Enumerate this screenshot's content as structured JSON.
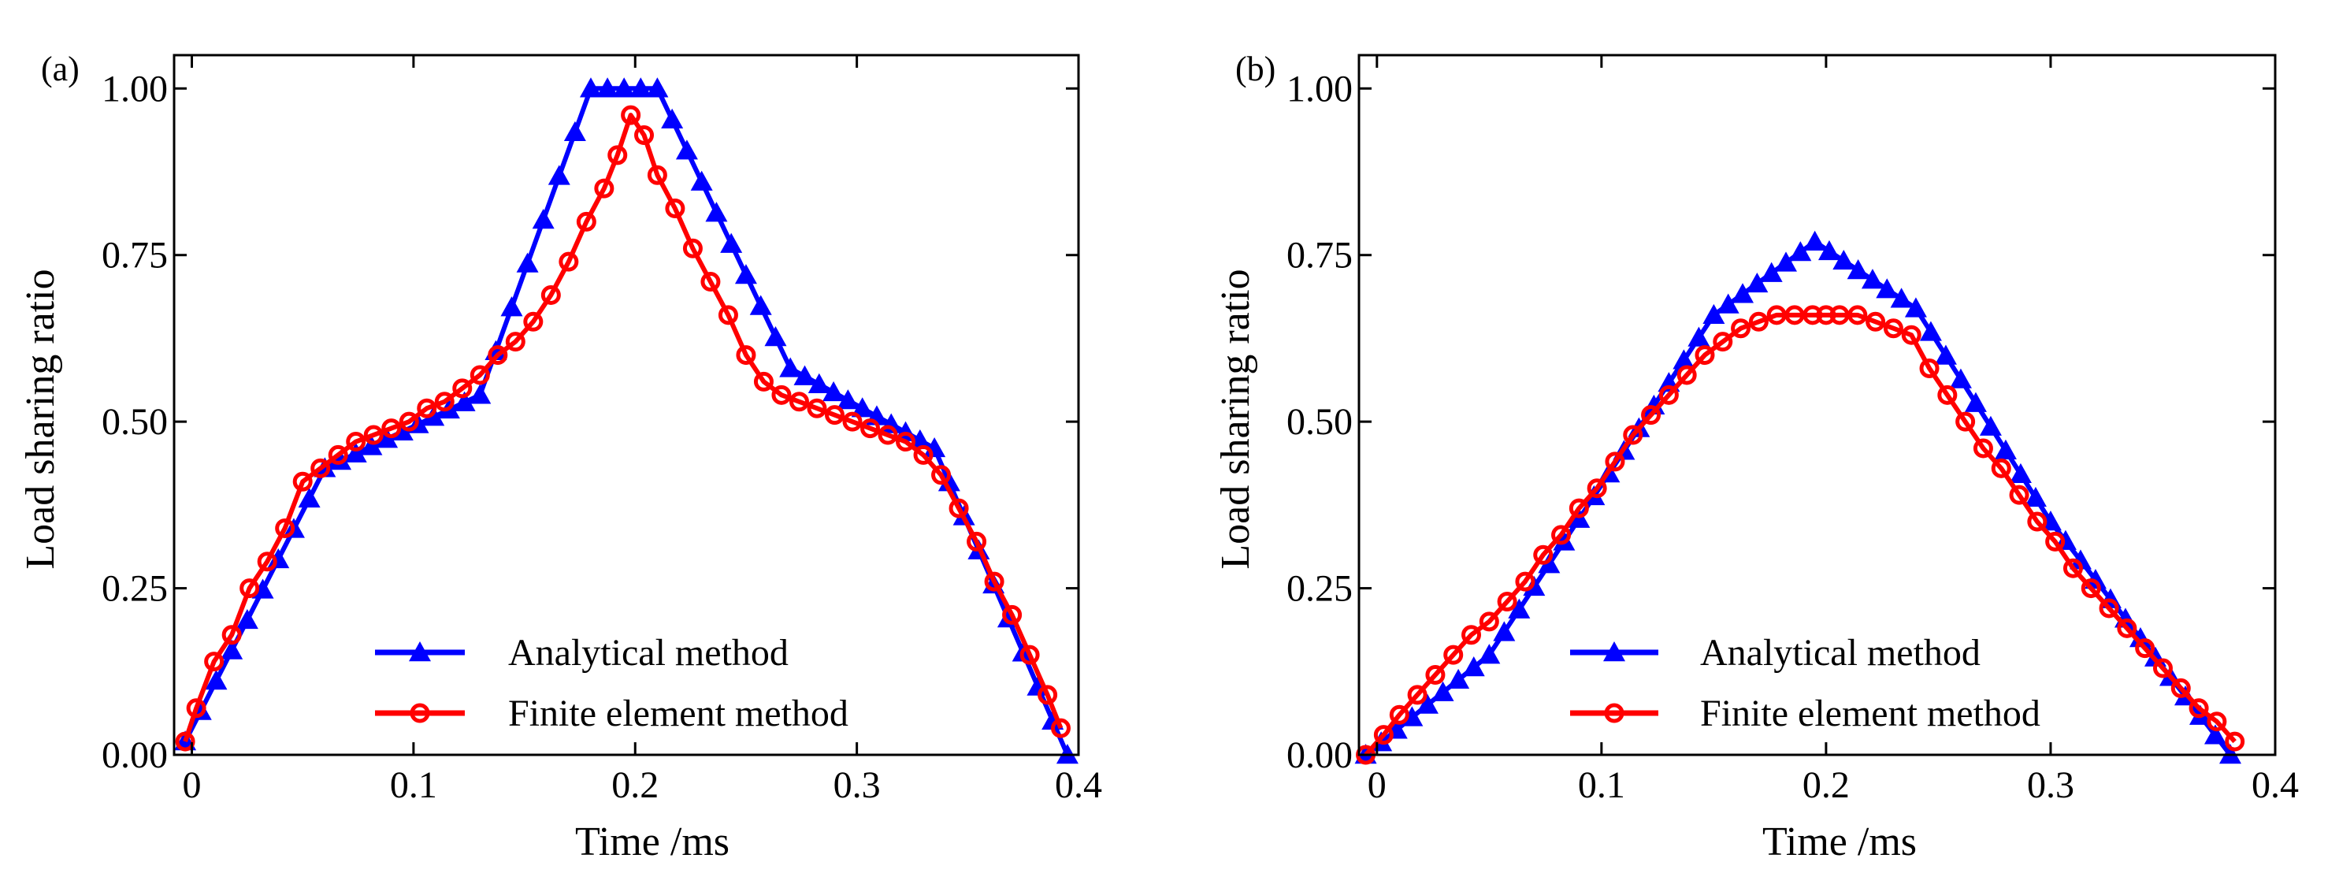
{
  "chart_data": [
    {
      "type": "line",
      "panel_label": "(a)",
      "xlabel": "Time /ms",
      "ylabel": "Load sharing ratio",
      "xlim": [
        -0.008,
        0.4
      ],
      "ylim": [
        0,
        1.05
      ],
      "xticks": [
        0,
        0.1,
        0.2,
        0.3,
        0.4
      ],
      "xtick_labels": [
        "0",
        "0.1",
        "0.2",
        "0.3",
        "0.4"
      ],
      "yticks": [
        0,
        0.25,
        0.5,
        0.75,
        1.0
      ],
      "ytick_labels": [
        "0.00",
        "0.25",
        "0.50",
        "0.75",
        "1.00"
      ],
      "grid": false,
      "legend_position": "bottom-center",
      "series": [
        {
          "name": "Analytical method",
          "color": "#0000ff",
          "marker": "triangle",
          "x": [
            -0.003,
            0.06,
            0.13,
            0.18,
            0.21,
            0.27,
            0.335,
            0.395
          ],
          "y": [
            0.02,
            0.43,
            0.54,
            1.0,
            1.0,
            0.58,
            0.46,
            0.0
          ]
        },
        {
          "name": "Finite element method",
          "color": "#ff0000",
          "marker": "circle",
          "x": [
            -0.003,
            0.002,
            0.01,
            0.018,
            0.026,
            0.034,
            0.042,
            0.05,
            0.058,
            0.066,
            0.074,
            0.082,
            0.09,
            0.098,
            0.106,
            0.114,
            0.122,
            0.13,
            0.138,
            0.146,
            0.154,
            0.162,
            0.17,
            0.178,
            0.186,
            0.192,
            0.198,
            0.204,
            0.21,
            0.218,
            0.226,
            0.234,
            0.242,
            0.25,
            0.258,
            0.266,
            0.274,
            0.282,
            0.29,
            0.298,
            0.306,
            0.314,
            0.322,
            0.33,
            0.338,
            0.346,
            0.354,
            0.362,
            0.37,
            0.378,
            0.386,
            0.392
          ],
          "y": [
            0.02,
            0.07,
            0.14,
            0.18,
            0.25,
            0.29,
            0.34,
            0.41,
            0.43,
            0.45,
            0.47,
            0.48,
            0.49,
            0.5,
            0.52,
            0.53,
            0.55,
            0.57,
            0.6,
            0.62,
            0.65,
            0.69,
            0.74,
            0.8,
            0.85,
            0.9,
            0.96,
            0.93,
            0.87,
            0.82,
            0.76,
            0.71,
            0.66,
            0.6,
            0.56,
            0.54,
            0.53,
            0.52,
            0.51,
            0.5,
            0.49,
            0.48,
            0.47,
            0.45,
            0.42,
            0.37,
            0.32,
            0.26,
            0.21,
            0.15,
            0.09,
            0.04
          ]
        }
      ]
    },
    {
      "type": "line",
      "panel_label": "(b)",
      "xlabel": "Time /ms",
      "ylabel": "Load sharing ratio",
      "xlim": [
        -0.008,
        0.4
      ],
      "ylim": [
        0,
        1.05
      ],
      "xticks": [
        0,
        0.1,
        0.2,
        0.3,
        0.4
      ],
      "xtick_labels": [
        "0",
        "0.1",
        "0.2",
        "0.3",
        "0.4"
      ],
      "yticks": [
        0,
        0.25,
        0.5,
        0.75,
        1.0
      ],
      "ytick_labels": [
        "0.00",
        "0.25",
        "0.50",
        "0.75",
        "1.00"
      ],
      "grid": false,
      "legend_position": "bottom-center",
      "series": [
        {
          "name": "Analytical method",
          "color": "#0000ff",
          "marker": "triangle",
          "x": [
            -0.005,
            0.05,
            0.15,
            0.195,
            0.24,
            0.3,
            0.38
          ],
          "y": [
            0.0,
            0.15,
            0.66,
            0.77,
            0.67,
            0.35,
            0.0
          ]
        },
        {
          "name": "Finite element method",
          "color": "#ff0000",
          "marker": "circle",
          "x": [
            -0.005,
            0.003,
            0.01,
            0.018,
            0.026,
            0.034,
            0.042,
            0.05,
            0.058,
            0.066,
            0.074,
            0.082,
            0.09,
            0.098,
            0.106,
            0.114,
            0.122,
            0.13,
            0.138,
            0.146,
            0.154,
            0.162,
            0.17,
            0.178,
            0.186,
            0.194,
            0.2,
            0.206,
            0.214,
            0.222,
            0.23,
            0.238,
            0.246,
            0.254,
            0.262,
            0.27,
            0.278,
            0.286,
            0.294,
            0.302,
            0.31,
            0.318,
            0.326,
            0.334,
            0.342,
            0.35,
            0.358,
            0.366,
            0.374,
            0.382
          ],
          "y": [
            0.0,
            0.03,
            0.06,
            0.09,
            0.12,
            0.15,
            0.18,
            0.2,
            0.23,
            0.26,
            0.3,
            0.33,
            0.37,
            0.4,
            0.44,
            0.48,
            0.51,
            0.54,
            0.57,
            0.6,
            0.62,
            0.64,
            0.65,
            0.66,
            0.66,
            0.66,
            0.66,
            0.66,
            0.66,
            0.65,
            0.64,
            0.63,
            0.58,
            0.54,
            0.5,
            0.46,
            0.43,
            0.39,
            0.35,
            0.32,
            0.28,
            0.25,
            0.22,
            0.19,
            0.16,
            0.13,
            0.1,
            0.07,
            0.05,
            0.02
          ]
        }
      ]
    }
  ]
}
